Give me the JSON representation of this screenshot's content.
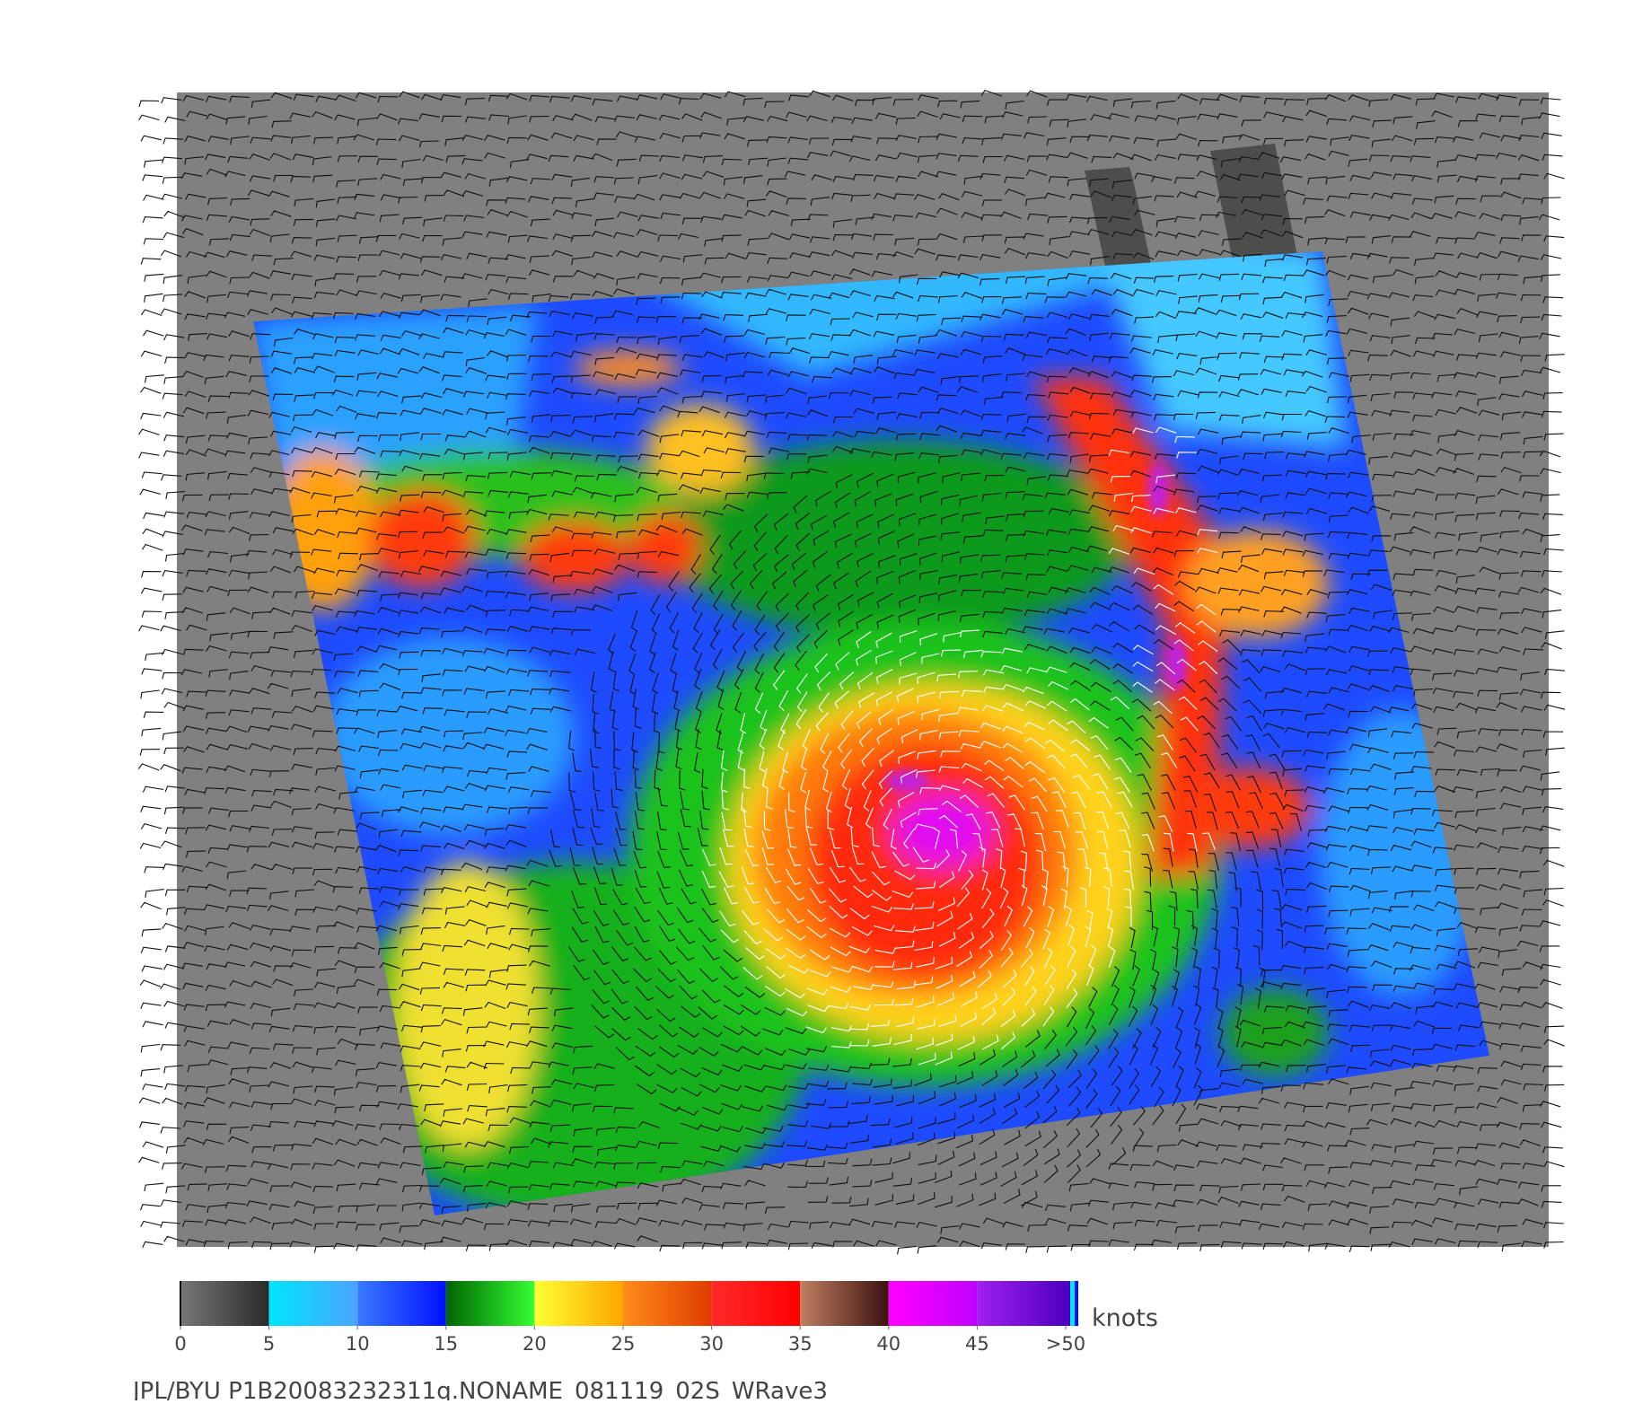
{
  "colorbar": {
    "ticks": [
      0,
      5,
      10,
      15,
      20,
      25,
      30,
      35,
      40,
      45,
      {
        "value": 50,
        "label": ">50"
      }
    ],
    "unit": "knots",
    "segments": [
      [
        "#777777",
        "#2a2a2a"
      ],
      [
        "#00e6ff",
        "#4aa3ff"
      ],
      [
        "#3a7bff",
        "#0010ff"
      ],
      [
        "#006400",
        "#33ff33"
      ],
      [
        "#ffff33",
        "#ffa500"
      ],
      [
        "#ff8c1a",
        "#e03b00"
      ],
      [
        "#ff2a2a",
        "#ff0000"
      ],
      [
        "#c08060",
        "#3a1010"
      ],
      [
        "#ff00ff",
        "#c000ff"
      ],
      [
        "#a020f0",
        "#5000c0"
      ]
    ]
  },
  "caption": "JPL/BYU  P1B20083232311q.NONAME_081119_02S_WRave3"
}
